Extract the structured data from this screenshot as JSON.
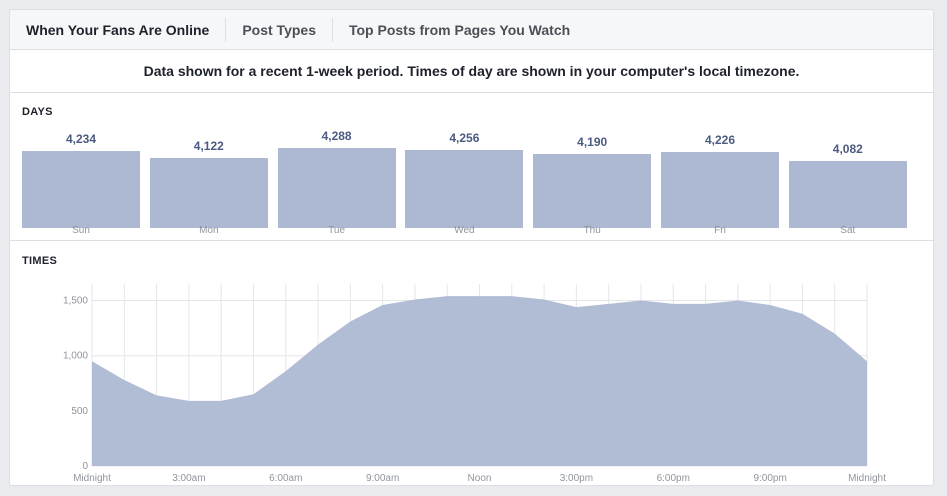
{
  "tabs": [
    {
      "label": "When Your Fans Are Online",
      "active": true
    },
    {
      "label": "Post Types",
      "active": false
    },
    {
      "label": "Top Posts from Pages You Watch",
      "active": false
    }
  ],
  "notice": "Data shown for a recent 1-week period. Times of day are shown in your computer's local timezone.",
  "colors": {
    "bar": "#adb9d3",
    "area": "#adb9d3",
    "value_text": "#4b5a80",
    "axis_text": "#90949c",
    "grid": "#e5e6e9"
  },
  "chart_data": [
    {
      "type": "bar",
      "title": "DAYS",
      "categories": [
        "Sun",
        "Mon",
        "Tue",
        "Wed",
        "Thu",
        "Fri",
        "Sat"
      ],
      "values": [
        4234,
        4122,
        4288,
        4256,
        4190,
        4226,
        4082
      ],
      "value_labels": [
        "4,234",
        "4,122",
        "4,288",
        "4,256",
        "4,190",
        "4,226",
        "4,082"
      ],
      "ylim": [
        0,
        4288
      ]
    },
    {
      "type": "area",
      "title": "TIMES",
      "x_ticks": [
        "Midnight",
        "3:00am",
        "6:00am",
        "9:00am",
        "Noon",
        "3:00pm",
        "6:00pm",
        "9:00pm",
        "Midnight"
      ],
      "y_ticks": [
        "0",
        "500",
        "1,000",
        "1,500"
      ],
      "ylim": [
        0,
        1650
      ],
      "x": [
        0,
        1,
        2,
        3,
        4,
        5,
        6,
        7,
        8,
        9,
        10,
        11,
        12,
        13,
        14,
        15,
        16,
        17,
        18,
        19,
        20,
        21,
        22,
        23,
        24
      ],
      "values": [
        950,
        780,
        640,
        590,
        590,
        650,
        860,
        1100,
        1310,
        1460,
        1510,
        1540,
        1540,
        1540,
        1510,
        1440,
        1470,
        1500,
        1470,
        1470,
        1500,
        1460,
        1380,
        1200,
        950
      ],
      "grid": true
    }
  ]
}
